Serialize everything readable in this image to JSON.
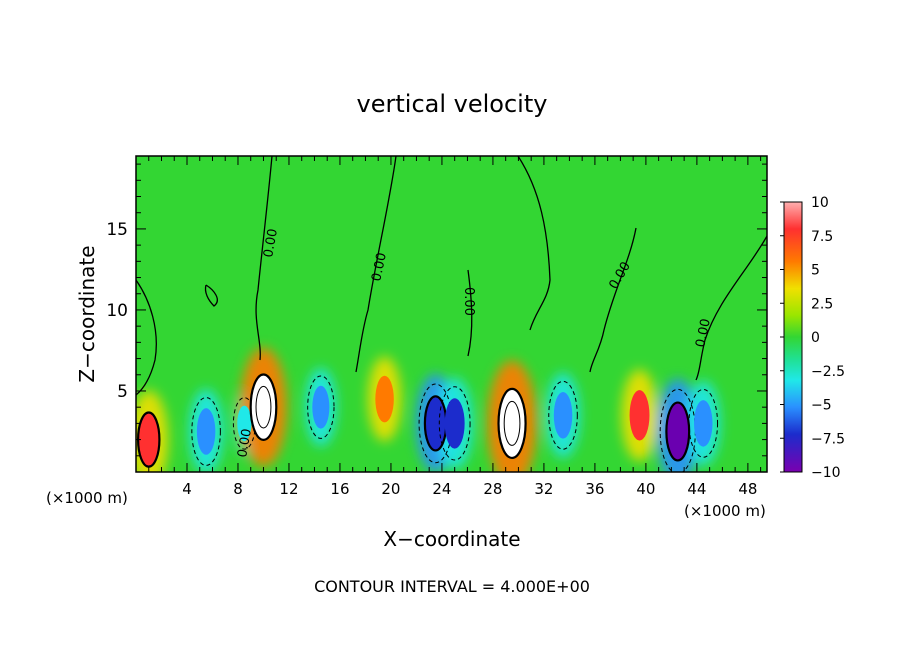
{
  "chart_data": {
    "type": "heatmap",
    "title": "vertical velocity",
    "xlabel": "X−coordinate",
    "ylabel": "Z−coordinate",
    "x_unit_left": "(×1000 m)",
    "x_unit_right": "(×1000 m)",
    "footer": "CONTOUR INTERVAL = 4.000E+00",
    "xlim": [
      0,
      49.5
    ],
    "ylim": [
      0,
      19.5
    ],
    "x_ticks": [
      4,
      8,
      12,
      16,
      20,
      24,
      28,
      32,
      36,
      40,
      44,
      48
    ],
    "y_ticks": [
      5,
      10,
      15
    ],
    "x_tick_labels": [
      "4",
      "8",
      "12",
      "16",
      "20",
      "24",
      "28",
      "32",
      "36",
      "40",
      "44",
      "48"
    ],
    "y_tick_labels": [
      "5",
      "10",
      "15"
    ],
    "colorbar": {
      "ticks": [
        10,
        7.5,
        5,
        2.5,
        0,
        -2.5,
        -5,
        -7.5,
        -10
      ],
      "labels": [
        "10",
        "7.5",
        "5",
        "2.5",
        "0",
        "−2.5",
        "−5",
        "−7.5",
        "−10"
      ],
      "range": [
        -10,
        10
      ]
    },
    "contour_labels": [
      "0.00",
      "0.00",
      "0.00",
      "0.00",
      "0.00",
      "0.00"
    ],
    "cells": [
      {
        "x": 1.0,
        "z": 2.0,
        "value": 8
      },
      {
        "x": 5.5,
        "z": 2.5,
        "value": -6
      },
      {
        "x": 8.5,
        "z": 3.0,
        "value": -3
      },
      {
        "x": 10.0,
        "z": 4.0,
        "value": 11
      },
      {
        "x": 14.5,
        "z": 4.0,
        "value": -5
      },
      {
        "x": 19.5,
        "z": 4.5,
        "value": 6
      },
      {
        "x": 23.5,
        "z": 3.0,
        "value": -8
      },
      {
        "x": 25.0,
        "z": 3.0,
        "value": -7
      },
      {
        "x": 29.5,
        "z": 3.0,
        "value": 12
      },
      {
        "x": 33.5,
        "z": 3.5,
        "value": -6
      },
      {
        "x": 39.5,
        "z": 3.5,
        "value": 7
      },
      {
        "x": 42.5,
        "z": 2.5,
        "value": -9
      },
      {
        "x": 44.5,
        "z": 3.0,
        "value": -6
      }
    ]
  },
  "colors": {
    "background_field": "#33d633",
    "positive_peak": "#ffffff",
    "negative_peak": "#6a00b0"
  }
}
